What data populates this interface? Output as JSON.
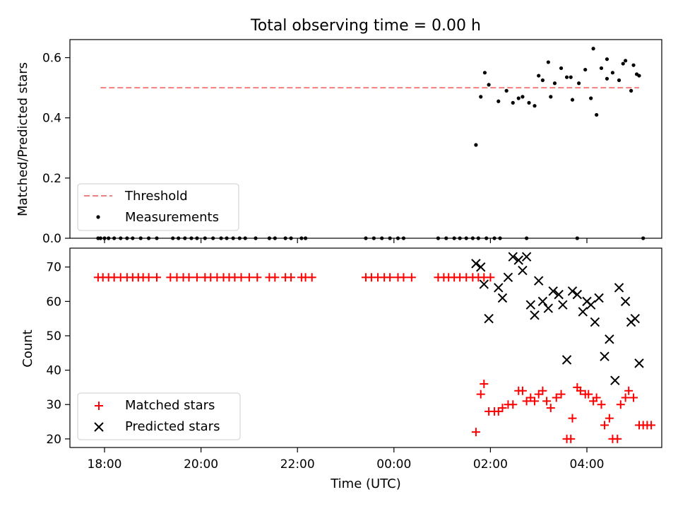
{
  "chart_data": [
    {
      "type": "scatter",
      "title": "Total observing time = 0.00 h",
      "ylabel": "Matched/Predicted stars",
      "xlabel": "",
      "ylim": [
        0,
        0.66
      ],
      "yticks": [
        "0.0",
        "0.2",
        "0.4",
        "0.6"
      ],
      "grid": false,
      "legend_placement": "lower-left",
      "threshold": {
        "name": "Threshold",
        "value": 0.5,
        "x_start": "17:55",
        "x_end": "05:05",
        "color": "#f08080"
      },
      "series": [
        {
          "name": "Measurements",
          "color": "#000000",
          "x": [
            "17:52",
            "17:55",
            "18:00",
            "18:05",
            "18:12",
            "18:20",
            "18:28",
            "18:35",
            "18:45",
            "18:55",
            "19:05",
            "19:25",
            "19:32",
            "19:40",
            "19:48",
            "19:55",
            "20:05",
            "20:15",
            "20:25",
            "20:32",
            "20:40",
            "20:48",
            "20:55",
            "21:08",
            "21:25",
            "21:32",
            "21:45",
            "21:52",
            "22:05",
            "22:10",
            "23:25",
            "23:35",
            "23:45",
            "23:55",
            "00:05",
            "00:12",
            "00:55",
            "01:05",
            "01:15",
            "01:22",
            "01:30",
            "01:38",
            "01:45",
            "01:55",
            "02:05",
            "02:12",
            "01:42",
            "01:48",
            "01:53",
            "01:58",
            "02:10",
            "02:20",
            "02:28",
            "02:35",
            "02:40",
            "02:48",
            "02:55",
            "03:05",
            "03:12",
            "03:20",
            "03:28",
            "03:35",
            "03:42",
            "03:50",
            "03:58",
            "04:05",
            "04:12",
            "04:18",
            "04:25",
            "04:32",
            "04:40",
            "04:48",
            "04:55",
            "05:02",
            "04:25",
            "05:05",
            "05:10",
            "03:48",
            "02:45",
            "03:00",
            "03:15",
            "03:40",
            "04:08",
            "04:45",
            "04:58"
          ],
          "y": [
            0,
            0,
            0,
            0,
            0,
            0,
            0,
            0,
            0,
            0,
            0,
            0,
            0,
            0,
            0,
            0,
            0,
            0,
            0,
            0,
            0,
            0,
            0,
            0,
            0,
            0,
            0,
            0,
            0,
            0,
            0,
            0,
            0,
            0,
            0,
            0,
            0,
            0,
            0,
            0,
            0,
            0,
            0,
            0,
            0,
            0,
            0.31,
            0.47,
            0.55,
            0.51,
            0.455,
            0.49,
            0.45,
            0.465,
            0.47,
            0.45,
            0.44,
            0.525,
            0.585,
            0.515,
            0.565,
            0.535,
            0.46,
            0.515,
            0.56,
            0.465,
            0.41,
            0.565,
            0.595,
            0.55,
            0.525,
            0.59,
            0.49,
            0.545,
            0.53,
            0.54,
            0,
            0,
            0,
            0.54,
            0.47,
            0.535,
            0.63,
            0.58,
            0.575
          ]
        }
      ]
    },
    {
      "type": "scatter",
      "title": "",
      "ylabel": "Count",
      "xlabel": "Time (UTC)",
      "ylim": [
        17.5,
        75.5
      ],
      "yticks": [
        "20",
        "30",
        "40",
        "50",
        "60",
        "70"
      ],
      "xticks": [
        "18:00",
        "20:00",
        "22:00",
        "00:00",
        "02:00",
        "04:00"
      ],
      "grid": false,
      "legend_placement": "lower-left",
      "series": [
        {
          "name": "Matched stars",
          "color": "#ff0000",
          "marker": "+",
          "x": [
            "17:52",
            "17:58",
            "18:05",
            "18:12",
            "18:20",
            "18:28",
            "18:35",
            "18:42",
            "18:48",
            "18:55",
            "19:05",
            "19:22",
            "19:30",
            "19:38",
            "19:45",
            "19:55",
            "20:05",
            "20:12",
            "20:20",
            "20:28",
            "20:35",
            "20:42",
            "20:50",
            "21:00",
            "21:10",
            "21:25",
            "21:32",
            "21:45",
            "21:52",
            "22:05",
            "22:10",
            "22:18",
            "23:25",
            "23:32",
            "23:40",
            "23:48",
            "23:55",
            "00:05",
            "00:12",
            "00:22",
            "00:55",
            "01:02",
            "01:08",
            "01:15",
            "01:22",
            "01:30",
            "01:38",
            "01:45",
            "01:52",
            "02:00",
            "01:42",
            "01:48",
            "01:52",
            "01:58",
            "02:05",
            "02:10",
            "02:15",
            "02:22",
            "02:28",
            "02:35",
            "02:40",
            "02:45",
            "02:50",
            "02:55",
            "03:00",
            "03:05",
            "03:10",
            "03:15",
            "03:22",
            "03:28",
            "03:35",
            "03:40",
            "03:42",
            "03:48",
            "03:52",
            "03:58",
            "04:02",
            "04:08",
            "04:12",
            "04:18",
            "04:22",
            "04:28",
            "04:32",
            "04:38",
            "04:42",
            "04:48",
            "04:52",
            "04:58",
            "05:05",
            "05:10",
            "05:15",
            "05:20"
          ],
          "y": [
            67,
            67,
            67,
            67,
            67,
            67,
            67,
            67,
            67,
            67,
            67,
            67,
            67,
            67,
            67,
            67,
            67,
            67,
            67,
            67,
            67,
            67,
            67,
            67,
            67,
            67,
            67,
            67,
            67,
            67,
            67,
            67,
            67,
            67,
            67,
            67,
            67,
            67,
            67,
            67,
            67,
            67,
            67,
            67,
            67,
            67,
            67,
            67,
            67,
            67,
            22,
            33,
            36,
            28,
            28,
            28,
            29,
            30,
            30,
            34,
            34,
            31,
            32,
            31,
            33,
            34,
            31,
            29,
            32,
            33,
            20,
            20,
            26,
            35,
            34,
            33,
            33,
            31,
            32,
            30,
            24,
            26,
            20,
            20,
            30,
            32,
            34,
            32,
            24,
            24,
            24,
            24
          ]
        },
        {
          "name": "Predicted stars",
          "color": "#000000",
          "marker": "x",
          "x": [
            "01:42",
            "01:48",
            "01:52",
            "01:58",
            "02:10",
            "02:15",
            "02:22",
            "02:28",
            "02:35",
            "02:40",
            "02:45",
            "02:50",
            "02:55",
            "03:00",
            "03:05",
            "03:12",
            "03:18",
            "03:25",
            "03:30",
            "03:35",
            "03:42",
            "03:48",
            "03:55",
            "04:00",
            "04:05",
            "04:10",
            "04:15",
            "04:22",
            "04:28",
            "04:35",
            "04:40",
            "04:48",
            "04:55",
            "05:00",
            "05:05"
          ],
          "y": [
            71,
            70,
            65,
            55,
            64,
            61,
            67,
            73,
            72,
            69,
            73,
            59,
            56,
            66,
            60,
            58,
            63,
            62,
            59,
            43,
            63,
            62,
            57,
            60,
            59,
            54,
            61,
            44,
            49,
            37,
            64,
            60,
            54,
            55,
            42
          ]
        }
      ]
    }
  ]
}
